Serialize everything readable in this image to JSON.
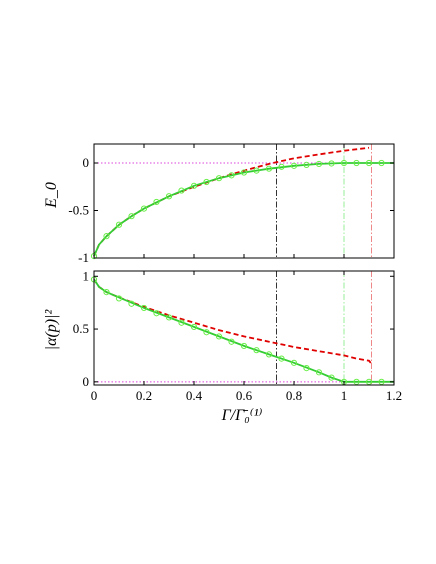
{
  "chart_data": [
    {
      "type": "line",
      "ylabel": "E_0",
      "xlim": [
        0,
        1.2
      ],
      "ylim": [
        -1,
        0.2
      ],
      "xticks": [
        0,
        0.2,
        0.4,
        0.6,
        0.8,
        1,
        1.2
      ],
      "yticks": [
        0,
        -0.5,
        -1
      ],
      "ytick_labels": [
        "0",
        "-0.5",
        "-1"
      ],
      "show_xtick_labels": false,
      "grid": false,
      "series": [
        {
          "style": "red-dashed",
          "color": "#e00000",
          "x": [
            0,
            0.02,
            0.05,
            0.1,
            0.15,
            0.2,
            0.3,
            0.4,
            0.5,
            0.6,
            0.7,
            0.8,
            0.9,
            1.0,
            1.1
          ],
          "y": [
            -0.98,
            -0.86,
            -0.77,
            -0.65,
            -0.56,
            -0.48,
            -0.35,
            -0.25,
            -0.16,
            -0.08,
            -0.01,
            0.05,
            0.09,
            0.13,
            0.16
          ]
        },
        {
          "style": "green-solid",
          "color": "#33cc33",
          "x": [
            0,
            0.02,
            0.05,
            0.1,
            0.15,
            0.2,
            0.3,
            0.4,
            0.5,
            0.6,
            0.7,
            0.8,
            0.9,
            1.0,
            1.1,
            1.2
          ],
          "y": [
            -0.98,
            -0.86,
            -0.77,
            -0.65,
            -0.56,
            -0.48,
            -0.35,
            -0.24,
            -0.16,
            -0.1,
            -0.06,
            -0.03,
            -0.01,
            0,
            0,
            0
          ]
        },
        {
          "style": "green-circles",
          "color": "#66ee44",
          "x": [
            0,
            0.05,
            0.1,
            0.15,
            0.2,
            0.25,
            0.3,
            0.35,
            0.4,
            0.45,
            0.5,
            0.55,
            0.6,
            0.65,
            0.7,
            0.75,
            0.8,
            0.85,
            0.9,
            0.95,
            1.0,
            1.05,
            1.1,
            1.15
          ],
          "y": [
            -0.98,
            -0.77,
            -0.65,
            -0.56,
            -0.48,
            -0.41,
            -0.35,
            -0.29,
            -0.24,
            -0.2,
            -0.16,
            -0.13,
            -0.1,
            -0.08,
            -0.06,
            -0.04,
            -0.03,
            -0.02,
            -0.01,
            -0.005,
            0,
            0,
            0,
            0
          ]
        }
      ],
      "reference_lines": [
        {
          "orientation": "horizontal",
          "value": 0,
          "color": "#dd44dd",
          "style": "dotted"
        },
        {
          "orientation": "vertical",
          "value": 0.73,
          "color": "#333333",
          "style": "dash-dot"
        },
        {
          "orientation": "vertical",
          "value": 1.0,
          "color": "#99ee99",
          "style": "dash-dot"
        },
        {
          "orientation": "vertical",
          "value": 1.11,
          "color": "#ee8888",
          "style": "dash-dot"
        }
      ]
    },
    {
      "type": "line",
      "ylabel": "|α(p)|²",
      "xlabel": "Γ/Γ̄₀⁽¹⁾",
      "xlim": [
        0,
        1.2
      ],
      "ylim": [
        -0.03,
        1.05
      ],
      "xticks": [
        0,
        0.2,
        0.4,
        0.6,
        0.8,
        1,
        1.2
      ],
      "xtick_labels": [
        "0",
        "0.2",
        "0.4",
        "0.6",
        "0.8",
        "1",
        "1.2"
      ],
      "yticks": [
        0,
        0.5,
        1
      ],
      "ytick_labels": [
        "0",
        "0.5",
        "1"
      ],
      "grid": false,
      "series": [
        {
          "style": "red-dashed",
          "color": "#e00000",
          "x": [
            0,
            0.02,
            0.05,
            0.1,
            0.2,
            0.3,
            0.4,
            0.5,
            0.6,
            0.7,
            0.8,
            0.9,
            1.0,
            1.05,
            1.1,
            1.11
          ],
          "y": [
            0.97,
            0.9,
            0.85,
            0.8,
            0.71,
            0.63,
            0.56,
            0.49,
            0.43,
            0.38,
            0.33,
            0.29,
            0.25,
            0.22,
            0.2,
            0.17
          ]
        },
        {
          "style": "green-solid",
          "color": "#33cc33",
          "x": [
            0,
            0.02,
            0.05,
            0.1,
            0.2,
            0.3,
            0.4,
            0.5,
            0.6,
            0.7,
            0.8,
            0.9,
            0.95,
            1.0,
            1.05,
            1.1,
            1.2
          ],
          "y": [
            0.97,
            0.9,
            0.85,
            0.8,
            0.7,
            0.61,
            0.52,
            0.43,
            0.34,
            0.26,
            0.18,
            0.09,
            0.04,
            0,
            0,
            0,
            0
          ]
        },
        {
          "style": "green-circles",
          "color": "#66ee44",
          "x": [
            0,
            0.05,
            0.1,
            0.15,
            0.2,
            0.25,
            0.3,
            0.35,
            0.4,
            0.45,
            0.5,
            0.55,
            0.6,
            0.65,
            0.7,
            0.75,
            0.8,
            0.85,
            0.9,
            0.95,
            1.0,
            1.05,
            1.1,
            1.15
          ],
          "y": [
            0.97,
            0.85,
            0.79,
            0.74,
            0.7,
            0.65,
            0.61,
            0.56,
            0.52,
            0.47,
            0.43,
            0.38,
            0.34,
            0.3,
            0.26,
            0.22,
            0.18,
            0.13,
            0.09,
            0.04,
            0,
            0,
            0,
            0
          ]
        }
      ],
      "reference_lines": [
        {
          "orientation": "horizontal",
          "value": 0,
          "color": "#dd44dd",
          "style": "dotted"
        },
        {
          "orientation": "vertical",
          "value": 0.73,
          "color": "#333333",
          "style": "dash-dot"
        },
        {
          "orientation": "vertical",
          "value": 1.0,
          "color": "#99ee99",
          "style": "dash-dot"
        },
        {
          "orientation": "vertical",
          "value": 1.11,
          "color": "#ee8888",
          "style": "dash-dot"
        }
      ]
    }
  ]
}
